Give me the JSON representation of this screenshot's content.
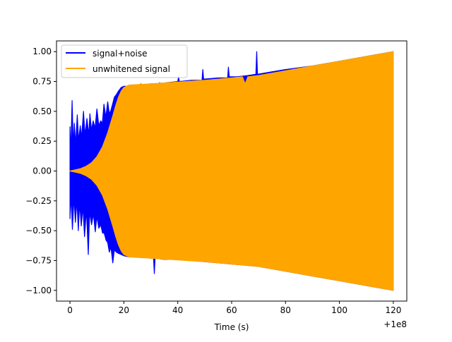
{
  "chart_data": {
    "type": "line",
    "xlabel": "Time (s)",
    "ylabel": "",
    "x_offset_label": "+1e8",
    "xlim": [
      -5,
      125
    ],
    "ylim": [
      -1.09,
      1.09
    ],
    "x_ticks": [
      0,
      20,
      40,
      60,
      80,
      100,
      120
    ],
    "x_tick_labels": [
      "0",
      "20",
      "40",
      "60",
      "80",
      "100",
      "120"
    ],
    "y_ticks": [
      1.0,
      0.75,
      0.5,
      0.25,
      0.0,
      -0.25,
      -0.5,
      -0.75,
      -1.0
    ],
    "y_tick_labels": [
      "1.00",
      "0.75",
      "0.50",
      "0.25",
      "0.00",
      "−0.25",
      "−0.50",
      "−0.75",
      "−1.00"
    ],
    "grid": false,
    "legend_position": "top-left",
    "series": [
      {
        "name": "signal+noise",
        "color": "#0000ff",
        "upper_envelope": {
          "x": [
            0,
            0.3,
            0.8,
            1.2,
            1.6,
            2.1,
            2.7,
            3.2,
            3.8,
            4.3,
            5.0,
            5.6,
            6.3,
            7.0,
            7.4,
            8.0,
            8.6,
            9.3,
            10.0,
            10.7,
            11.4,
            12.0,
            12.6,
            13.3,
            14.0,
            14.6,
            15.2,
            15.8,
            16.5,
            17.2,
            18.0,
            19.0,
            20.0,
            22.0,
            26.0,
            26.3,
            26.6,
            30.0,
            33.0,
            33.3,
            33.6,
            36.0,
            40.0,
            40.3,
            40.6,
            45.0,
            49.0,
            49.3,
            49.6,
            55.0,
            58.5,
            58.8,
            59.1,
            62.0,
            66.0,
            69.0,
            69.3,
            69.6,
            72.0,
            80.0,
            90.0,
            100.0,
            110.0,
            120.0
          ],
          "y": [
            0.37,
            0.15,
            0.59,
            0.2,
            0.4,
            0.22,
            0.47,
            0.25,
            0.38,
            0.28,
            0.5,
            0.3,
            0.44,
            0.3,
            0.48,
            0.34,
            0.42,
            0.36,
            0.52,
            0.38,
            0.42,
            0.4,
            0.56,
            0.45,
            0.58,
            0.48,
            0.51,
            0.56,
            0.62,
            0.64,
            0.67,
            0.7,
            0.71,
            0.71,
            0.72,
            0.73,
            0.72,
            0.73,
            0.73,
            0.74,
            0.73,
            0.74,
            0.75,
            0.79,
            0.75,
            0.76,
            0.76,
            0.85,
            0.77,
            0.78,
            0.78,
            0.87,
            0.79,
            0.79,
            0.8,
            0.81,
            1.0,
            0.81,
            0.82,
            0.85,
            0.88,
            0.92,
            0.96,
            1.0
          ]
        },
        "lower_envelope": {
          "x": [
            0,
            0.4,
            0.9,
            1.5,
            2.0,
            2.6,
            3.1,
            3.6,
            4.2,
            4.8,
            5.4,
            6.1,
            6.8,
            7.3,
            8.0,
            8.7,
            9.4,
            10.0,
            10.7,
            11.4,
            12.1,
            12.7,
            13.4,
            14.0,
            14.6,
            15.2,
            15.9,
            16.5,
            17.2,
            18.0,
            19.0,
            20.0,
            22.0,
            26.0,
            30.0,
            31.0,
            31.3,
            31.6,
            35.0,
            40.0,
            45.0,
            50.0,
            55.0,
            60.0,
            65.0,
            70.0,
            80.0,
            90.0,
            100.0,
            110.0,
            120.0
          ],
          "y": [
            -0.4,
            -0.2,
            -0.49,
            -0.22,
            -0.43,
            -0.25,
            -0.5,
            -0.27,
            -0.46,
            -0.3,
            -0.55,
            -0.32,
            -0.7,
            -0.34,
            -0.45,
            -0.36,
            -0.51,
            -0.38,
            -0.48,
            -0.45,
            -0.52,
            -0.52,
            -0.58,
            -0.6,
            -0.68,
            -0.64,
            -0.77,
            -0.66,
            -0.68,
            -0.69,
            -0.7,
            -0.71,
            -0.72,
            -0.72,
            -0.73,
            -0.73,
            -0.86,
            -0.73,
            -0.74,
            -0.74,
            -0.75,
            -0.76,
            -0.77,
            -0.78,
            -0.79,
            -0.8,
            -0.84,
            -0.88,
            -0.92,
            -0.96,
            -1.0
          ]
        }
      },
      {
        "name": "unwhitened signal",
        "color": "#ffa500",
        "upper_envelope": {
          "x": [
            0,
            2,
            4,
            6,
            8,
            10,
            12,
            14,
            16,
            17,
            18,
            19,
            20,
            21,
            22,
            30,
            40,
            50,
            60,
            64,
            65,
            66,
            70,
            80,
            90,
            100,
            110,
            120
          ],
          "y": [
            0.0,
            0.01,
            0.02,
            0.04,
            0.07,
            0.12,
            0.2,
            0.32,
            0.47,
            0.55,
            0.62,
            0.67,
            0.7,
            0.71,
            0.72,
            0.73,
            0.745,
            0.76,
            0.78,
            0.79,
            0.73,
            0.79,
            0.8,
            0.84,
            0.88,
            0.92,
            0.96,
            1.0
          ]
        },
        "lower_envelope": {
          "x": [
            0,
            2,
            4,
            6,
            8,
            10,
            12,
            14,
            16,
            17,
            18,
            19,
            20,
            21,
            22,
            30,
            40,
            50,
            60,
            70,
            80,
            90,
            100,
            110,
            120
          ],
          "y": [
            0.0,
            -0.01,
            -0.02,
            -0.04,
            -0.07,
            -0.12,
            -0.2,
            -0.32,
            -0.47,
            -0.55,
            -0.62,
            -0.67,
            -0.7,
            -0.71,
            -0.72,
            -0.73,
            -0.745,
            -0.76,
            -0.78,
            -0.8,
            -0.84,
            -0.88,
            -0.92,
            -0.96,
            -1.0
          ]
        }
      }
    ]
  }
}
